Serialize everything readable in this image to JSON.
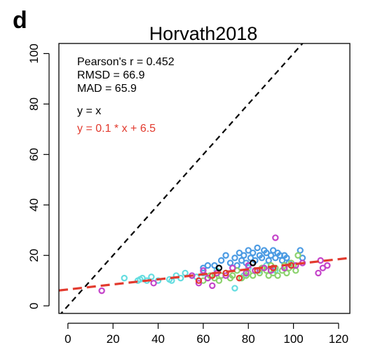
{
  "chart_data": {
    "type": "scatter",
    "panel_label": "d",
    "title": "Horvath2018",
    "xlabel": "",
    "ylabel": "",
    "xlim": [
      -4,
      125
    ],
    "ylim": [
      -3,
      104
    ],
    "x_ticks": [
      0,
      20,
      40,
      60,
      80,
      100,
      120
    ],
    "y_ticks": [
      0,
      20,
      40,
      60,
      80,
      100
    ],
    "grid": false,
    "stats": [
      "Pearson's r = 0.452",
      "RMSD = 66.9",
      "MAD = 65.9"
    ],
    "reference_line": {
      "label": "y = x",
      "slope": 1,
      "intercept": 0,
      "color": "#000000",
      "style": "dashed"
    },
    "fit_line": {
      "label": "y = 0.1 * x + 6.5",
      "slope": 0.1,
      "intercept": 6.5,
      "color": "#e23a2e",
      "style": "dashed"
    },
    "series": [
      {
        "color": "#66dde0",
        "points": [
          [
            25,
            11
          ],
          [
            31,
            10
          ],
          [
            32,
            10.5
          ],
          [
            33,
            11
          ],
          [
            35,
            10
          ],
          [
            37,
            11.5
          ],
          [
            40,
            10
          ],
          [
            45,
            10.5
          ],
          [
            46,
            10
          ],
          [
            48,
            12
          ],
          [
            50,
            11
          ],
          [
            52,
            13
          ],
          [
            55,
            12
          ],
          [
            57,
            11.5
          ],
          [
            60,
            13
          ],
          [
            63,
            12
          ],
          [
            66,
            14
          ],
          [
            70,
            13
          ],
          [
            74,
            7
          ],
          [
            78,
            12
          ],
          [
            80,
            15
          ],
          [
            85,
            14
          ],
          [
            88,
            16
          ],
          [
            92,
            14
          ]
        ]
      },
      {
        "color": "#4c9be3",
        "points": [
          [
            60,
            15
          ],
          [
            62,
            16
          ],
          [
            65,
            16
          ],
          [
            68,
            18
          ],
          [
            70,
            20
          ],
          [
            72,
            17
          ],
          [
            74,
            19
          ],
          [
            75,
            16
          ],
          [
            76,
            21
          ],
          [
            77,
            18
          ],
          [
            78,
            20
          ],
          [
            79,
            17
          ],
          [
            80,
            22
          ],
          [
            81,
            19
          ],
          [
            82,
            21
          ],
          [
            83,
            18
          ],
          [
            84,
            23
          ],
          [
            85,
            20
          ],
          [
            86,
            19
          ],
          [
            87,
            22
          ],
          [
            88,
            21
          ],
          [
            89,
            18
          ],
          [
            90,
            20
          ],
          [
            91,
            22
          ],
          [
            92,
            19
          ],
          [
            93,
            21
          ],
          [
            94,
            20
          ],
          [
            95,
            18
          ],
          [
            96,
            20
          ],
          [
            97,
            19
          ],
          [
            98,
            17
          ],
          [
            103,
            22
          ],
          [
            104,
            19
          ]
        ]
      },
      {
        "color": "#8cd26e",
        "points": [
          [
            60,
            10
          ],
          [
            62,
            11
          ],
          [
            63,
            12
          ],
          [
            65,
            11
          ],
          [
            67,
            10
          ],
          [
            68,
            12
          ],
          [
            70,
            13
          ],
          [
            72,
            11
          ],
          [
            73,
            12
          ],
          [
            75,
            14
          ],
          [
            77,
            11
          ],
          [
            79,
            12
          ],
          [
            80,
            13
          ],
          [
            82,
            12
          ],
          [
            83,
            14
          ],
          [
            85,
            13
          ],
          [
            86,
            15
          ],
          [
            88,
            14
          ],
          [
            89,
            12
          ],
          [
            90,
            16
          ],
          [
            91,
            13
          ],
          [
            92,
            15
          ],
          [
            93,
            12
          ],
          [
            95,
            14
          ],
          [
            96,
            16
          ],
          [
            97,
            13
          ],
          [
            98,
            15
          ],
          [
            99,
            17
          ],
          [
            100,
            16
          ],
          [
            101,
            14
          ],
          [
            102,
            20
          ]
        ]
      },
      {
        "color": "#c443c9",
        "points": [
          [
            15,
            6
          ],
          [
            38,
            9
          ],
          [
            55,
            12
          ],
          [
            58,
            9
          ],
          [
            60,
            14
          ],
          [
            62,
            11
          ],
          [
            64,
            8
          ],
          [
            66,
            13
          ],
          [
            70,
            12
          ],
          [
            73,
            15
          ],
          [
            79,
            13
          ],
          [
            80,
            16
          ],
          [
            83,
            14
          ],
          [
            87,
            15
          ],
          [
            90,
            14
          ],
          [
            92,
            27
          ],
          [
            96,
            15
          ],
          [
            101,
            16
          ],
          [
            104,
            17
          ],
          [
            111,
            13
          ],
          [
            112,
            18
          ],
          [
            113,
            15
          ],
          [
            115,
            16
          ]
        ]
      },
      {
        "color": "#e23a2e",
        "points": [
          [
            58,
            10
          ],
          [
            64,
            12
          ],
          [
            70,
            13
          ],
          [
            76,
            11
          ],
          [
            84,
            14
          ],
          [
            91,
            15
          ],
          [
            99,
            16
          ]
        ]
      },
      {
        "color": "#000000",
        "points": [
          [
            67,
            15
          ],
          [
            82,
            17
          ]
        ]
      }
    ]
  }
}
